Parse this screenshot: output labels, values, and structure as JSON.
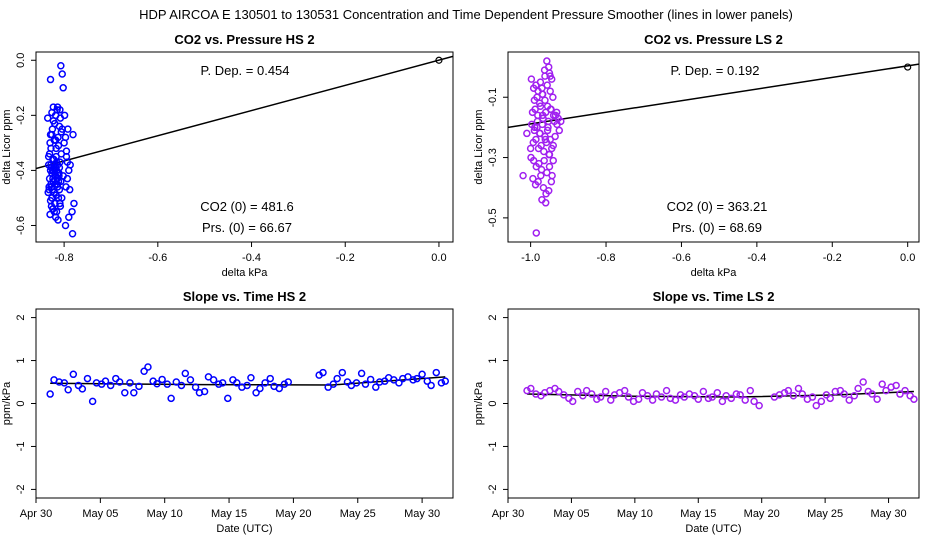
{
  "figure": {
    "title": "HDP   AIRCOA E   130501 to 130531   Concentration and Time Dependent Pressure Smoother (lines in lower panels)"
  },
  "chart_data": [
    {
      "type": "scatter",
      "panel": "hs-pressure",
      "title": "CO2 vs. Pressure HS 2",
      "xlabel": "delta kPa",
      "ylabel": "delta Licor ppm",
      "xlim": [
        -0.86,
        0.03
      ],
      "ylim": [
        -0.66,
        0.03
      ],
      "xticks": [
        -0.8,
        -0.6,
        -0.4,
        -0.2,
        0.0
      ],
      "xtick_labels": [
        "-0.8",
        "-0.6",
        "-0.4",
        "-0.2",
        "0.0"
      ],
      "yticks": [
        0.0,
        -0.2,
        -0.4,
        -0.6
      ],
      "ytick_labels": [
        "0.0",
        "-0.2",
        "-0.4",
        "-0.6"
      ],
      "color": "#0000ff",
      "fit_line": {
        "x": [
          -0.86,
          0.03
        ],
        "y": [
          -0.393,
          0.014
        ]
      },
      "reference_point": {
        "x": 0.0,
        "y": 0.0
      },
      "annotations": {
        "pdep": "P. Dep. =  0.454",
        "co2_zero": "CO2 (0) =  481.6",
        "prs_zero": "Prs. (0) =  66.67"
      },
      "x": [
        -0.829,
        -0.823,
        -0.815,
        -0.809,
        -0.835,
        -0.818,
        -0.826,
        -0.821,
        -0.806,
        -0.828,
        -0.812,
        -0.831,
        -0.817,
        -0.824,
        -0.809,
        -0.833,
        -0.814,
        -0.822,
        -0.818,
        -0.827,
        -0.81,
        -0.824,
        -0.816,
        -0.829,
        -0.82,
        -0.813,
        -0.826,
        -0.818,
        -0.811,
        -0.831,
        -0.815,
        -0.823,
        -0.807,
        -0.828,
        -0.819,
        -0.832,
        -0.814,
        -0.825,
        -0.81,
        -0.821,
        -0.834,
        -0.817,
        -0.826,
        -0.812,
        -0.829,
        -0.82,
        -0.808,
        -0.824,
        -0.816,
        -0.83,
        -0.818,
        -0.813,
        -0.827,
        -0.821,
        -0.809,
        -0.832,
        -0.815,
        -0.824,
        -0.819,
        -0.811,
        -0.828,
        -0.822,
        -0.806,
        -0.817,
        -0.83,
        -0.813,
        -0.825,
        -0.82,
        -0.808,
        -0.826,
        -0.814,
        -0.823,
        -0.81,
        -0.829,
        -0.818,
        -0.833,
        -0.816,
        -0.821,
        -0.812,
        -0.827,
        -0.807,
        -0.804,
        -0.802,
        -0.799,
        -0.804,
        -0.797,
        -0.8,
        -0.795,
        -0.793,
        -0.79,
        -0.802,
        -0.796,
        -0.805,
        -0.779,
        -0.783,
        -0.79,
        -0.797,
        -0.782,
        -0.788,
        -0.793,
        -0.787,
        -0.795,
        -0.781,
        -0.792
      ],
      "y": [
        -0.07,
        -0.17,
        -0.18,
        -0.18,
        -0.21,
        -0.2,
        -0.27,
        -0.29,
        -0.26,
        -0.32,
        -0.31,
        -0.34,
        -0.35,
        -0.36,
        -0.37,
        -0.38,
        -0.38,
        -0.38,
        -0.39,
        -0.39,
        -0.39,
        -0.4,
        -0.4,
        -0.4,
        -0.41,
        -0.41,
        -0.41,
        -0.42,
        -0.42,
        -0.43,
        -0.43,
        -0.44,
        -0.44,
        -0.45,
        -0.45,
        -0.46,
        -0.46,
        -0.47,
        -0.47,
        -0.48,
        -0.48,
        -0.49,
        -0.5,
        -0.5,
        -0.51,
        -0.52,
        -0.53,
        -0.54,
        -0.55,
        -0.56,
        -0.57,
        -0.58,
        -0.53,
        -0.55,
        -0.52,
        -0.47,
        -0.45,
        -0.43,
        -0.42,
        -0.41,
        -0.38,
        -0.36,
        -0.34,
        -0.32,
        -0.3,
        -0.28,
        -0.25,
        -0.23,
        -0.21,
        -0.19,
        -0.17,
        -0.22,
        -0.24,
        -0.27,
        -0.29,
        -0.35,
        -0.37,
        -0.39,
        -0.44,
        -0.46,
        -0.02,
        -0.05,
        -0.1,
        -0.2,
        -0.25,
        -0.28,
        -0.3,
        -0.33,
        -0.37,
        -0.4,
        -0.42,
        -0.46,
        -0.5,
        -0.52,
        -0.55,
        -0.57,
        -0.6,
        -0.63,
        -0.47,
        -0.43,
        -0.38,
        -0.35,
        -0.27,
        -0.25
      ]
    },
    {
      "type": "scatter",
      "panel": "ls-pressure",
      "title": "CO2 vs. Pressure LS 2",
      "xlabel": "delta kPa",
      "ylabel": "delta Licor ppm",
      "xlim": [
        -1.06,
        0.03
      ],
      "ylim": [
        -0.58,
        0.05
      ],
      "xticks": [
        -1.0,
        -0.8,
        -0.6,
        -0.4,
        -0.2,
        0.0
      ],
      "xtick_labels": [
        "-1.0",
        "-0.8",
        "-0.6",
        "-0.4",
        "-0.2",
        "0.0"
      ],
      "yticks": [
        -0.1,
        -0.3,
        -0.5
      ],
      "ytick_labels": [
        "-0.1",
        "-0.3",
        "-0.5"
      ],
      "color": "#a020f0",
      "fit_line": {
        "x": [
          -1.06,
          0.03
        ],
        "y": [
          -0.2,
          0.01
        ]
      },
      "reference_point": {
        "x": 0.0,
        "y": 0.0
      },
      "annotations": {
        "pdep": "P. Dep. =  0.192",
        "co2_zero": "CO2 (0) =  363.21",
        "prs_zero": "Prs. (0) =  68.69"
      },
      "x": [
        -0.998,
        -0.992,
        -0.986,
        -0.98,
        -0.974,
        -0.968,
        -0.962,
        -0.956,
        -0.95,
        -0.944,
        -0.99,
        -0.983,
        -0.976,
        -0.969,
        -0.962,
        -0.955,
        -0.948,
        -0.941,
        -0.995,
        -0.988,
        -0.981,
        -0.974,
        -0.967,
        -0.96,
        -0.953,
        -0.946,
        -0.939,
        -0.997,
        -0.99,
        -0.983,
        -0.976,
        -0.969,
        -0.962,
        -0.955,
        -0.948,
        -0.993,
        -0.986,
        -0.979,
        -0.972,
        -0.965,
        -0.958,
        -0.951,
        -0.944,
        -0.999,
        -0.992,
        -0.985,
        -0.978,
        -0.971,
        -0.964,
        -0.957,
        -0.95,
        -0.943,
        -0.994,
        -0.987,
        -0.98,
        -0.973,
        -0.966,
        -0.959,
        -0.952,
        -0.945,
        -0.989,
        -0.982,
        -0.975,
        -0.968,
        -0.961,
        -0.954,
        -0.947,
        -0.94,
        -0.937,
        -0.934,
        -0.93,
        -0.927,
        -0.924,
        -0.92,
        -0.935,
        -0.931,
        -0.952,
        -0.957,
        -0.963,
        -0.948,
        -0.97,
        -1.02,
        -1.01,
        -1.0,
        -0.97,
        -0.96,
        -0.95,
        -0.94,
        -0.985
      ],
      "y": [
        -0.04,
        -0.07,
        -0.06,
        -0.08,
        -0.05,
        -0.09,
        -0.03,
        -0.06,
        -0.02,
        -0.04,
        -0.11,
        -0.1,
        -0.12,
        -0.09,
        -0.11,
        -0.13,
        -0.08,
        -0.1,
        -0.15,
        -0.14,
        -0.16,
        -0.13,
        -0.17,
        -0.15,
        -0.18,
        -0.14,
        -0.16,
        -0.19,
        -0.21,
        -0.2,
        -0.22,
        -0.19,
        -0.23,
        -0.21,
        -0.24,
        -0.25,
        -0.24,
        -0.27,
        -0.26,
        -0.28,
        -0.25,
        -0.29,
        -0.27,
        -0.3,
        -0.31,
        -0.33,
        -0.32,
        -0.34,
        -0.31,
        -0.35,
        -0.33,
        -0.36,
        -0.37,
        -0.39,
        -0.38,
        -0.36,
        -0.4,
        -0.42,
        -0.41,
        -0.38,
        -0.2,
        -0.18,
        -0.22,
        -0.16,
        -0.24,
        -0.2,
        -0.14,
        -0.26,
        -0.18,
        -0.16,
        -0.19,
        -0.17,
        -0.21,
        -0.18,
        -0.23,
        -0.15,
        0.0,
        0.02,
        -0.01,
        -0.03,
        -0.07,
        -0.36,
        -0.22,
        -0.27,
        -0.44,
        -0.45,
        -0.29,
        -0.31,
        -0.55
      ]
    },
    {
      "type": "scatter",
      "panel": "hs-time",
      "title": "Slope vs. Time HS 2",
      "xlabel": "Date (UTC)",
      "ylabel": "ppm/kPa",
      "xlim": [
        30.0,
        62.4
      ],
      "ylim": [
        -2.2,
        2.2
      ],
      "xticks": [
        30,
        35,
        40,
        45,
        50,
        55,
        60
      ],
      "xtick_labels": [
        "Apr 30",
        "May 05",
        "May 10",
        "May 15",
        "May 20",
        "May 25",
        "May 30"
      ],
      "yticks": [
        -2,
        -1,
        0,
        1,
        2
      ],
      "ytick_labels": [
        "-2",
        "-1",
        "0",
        "1",
        "2"
      ],
      "color": "#0000ff",
      "x_units": "days from Apr 1 (Apr 30 = 30)",
      "smoother": {
        "x": [
          31.1,
          43.0,
          53.0,
          61.8
        ],
        "y": [
          0.47,
          0.44,
          0.43,
          0.62
        ]
      },
      "x": [
        31.1,
        31.4,
        31.8,
        32.2,
        32.5,
        32.9,
        33.3,
        33.6,
        34.0,
        34.4,
        34.7,
        35.1,
        35.4,
        35.8,
        36.2,
        36.5,
        36.9,
        37.3,
        37.6,
        38.0,
        38.4,
        38.7,
        39.1,
        39.4,
        39.8,
        40.2,
        40.5,
        40.9,
        41.3,
        41.6,
        42.0,
        42.4,
        42.7,
        43.1,
        43.4,
        43.8,
        44.2,
        44.5,
        44.9,
        45.3,
        45.6,
        46.0,
        46.4,
        46.7,
        47.1,
        47.4,
        47.8,
        48.2,
        48.5,
        48.9,
        49.3,
        49.6,
        52.0,
        52.3,
        52.7,
        53.1,
        53.4,
        53.8,
        54.2,
        54.5,
        54.9,
        55.3,
        55.6,
        56.0,
        56.4,
        56.7,
        57.1,
        57.4,
        57.8,
        58.2,
        58.5,
        58.9,
        59.3,
        59.6,
        60.0,
        60.4,
        60.7,
        61.1,
        61.5,
        61.8
      ],
      "y": [
        0.22,
        0.55,
        0.5,
        0.48,
        0.32,
        0.68,
        0.42,
        0.34,
        0.58,
        0.05,
        0.48,
        0.45,
        0.52,
        0.42,
        0.58,
        0.5,
        0.25,
        0.48,
        0.25,
        0.4,
        0.75,
        0.85,
        0.52,
        0.46,
        0.56,
        0.45,
        0.12,
        0.5,
        0.42,
        0.7,
        0.55,
        0.38,
        0.25,
        0.28,
        0.62,
        0.55,
        0.45,
        0.48,
        0.12,
        0.55,
        0.48,
        0.38,
        0.42,
        0.6,
        0.25,
        0.35,
        0.48,
        0.58,
        0.4,
        0.35,
        0.45,
        0.5,
        0.66,
        0.72,
        0.38,
        0.45,
        0.58,
        0.72,
        0.5,
        0.42,
        0.48,
        0.7,
        0.45,
        0.56,
        0.38,
        0.5,
        0.52,
        0.6,
        0.55,
        0.48,
        0.58,
        0.62,
        0.55,
        0.58,
        0.68,
        0.52,
        0.42,
        0.72,
        0.48,
        0.52
      ]
    },
    {
      "type": "scatter",
      "panel": "ls-time",
      "title": "Slope vs. Time LS 2",
      "xlabel": "Date (UTC)",
      "ylabel": "ppm/kPa",
      "xlim": [
        30.0,
        62.4
      ],
      "ylim": [
        -2.2,
        2.2
      ],
      "xticks": [
        30,
        35,
        40,
        45,
        50,
        55,
        60
      ],
      "xtick_labels": [
        "Apr 30",
        "May 05",
        "May 10",
        "May 15",
        "May 20",
        "May 25",
        "May 30"
      ],
      "yticks": [
        -2,
        -1,
        0,
        1,
        2
      ],
      "ytick_labels": [
        "-2",
        "-1",
        "0",
        "1",
        "2"
      ],
      "color": "#a020f0",
      "x_units": "days from Apr 1 (Apr 30 = 30)",
      "smoother": {
        "x": [
          31.5,
          40.0,
          48.0,
          56.0,
          62.0
        ],
        "y": [
          0.22,
          0.17,
          0.15,
          0.2,
          0.28
        ]
      },
      "x": [
        31.5,
        31.8,
        32.2,
        32.6,
        32.9,
        33.3,
        33.7,
        34.0,
        34.4,
        34.8,
        35.1,
        35.5,
        35.9,
        36.2,
        36.6,
        37.0,
        37.3,
        37.7,
        38.1,
        38.4,
        38.8,
        39.2,
        39.5,
        39.9,
        40.3,
        40.6,
        41.0,
        41.4,
        41.7,
        42.1,
        42.5,
        42.8,
        43.2,
        43.6,
        43.9,
        44.3,
        44.7,
        45.0,
        45.4,
        45.8,
        46.1,
        46.5,
        46.9,
        47.2,
        47.6,
        48.0,
        48.3,
        48.7,
        49.1,
        49.4,
        49.8,
        51.0,
        51.4,
        51.8,
        52.1,
        52.5,
        52.9,
        53.2,
        53.6,
        54.0,
        54.3,
        54.7,
        55.1,
        55.4,
        55.8,
        56.2,
        56.5,
        56.9,
        57.3,
        57.6,
        58.0,
        58.4,
        58.7,
        59.1,
        59.5,
        59.8,
        60.2,
        60.6,
        60.9,
        61.3,
        61.7,
        62.0
      ],
      "y": [
        0.3,
        0.35,
        0.22,
        0.18,
        0.25,
        0.3,
        0.35,
        0.28,
        0.2,
        0.12,
        0.05,
        0.28,
        0.18,
        0.3,
        0.22,
        0.1,
        0.15,
        0.28,
        0.08,
        0.2,
        0.25,
        0.3,
        0.15,
        0.05,
        0.1,
        0.25,
        0.18,
        0.08,
        0.22,
        0.15,
        0.3,
        0.12,
        0.08,
        0.2,
        0.15,
        0.22,
        0.18,
        0.1,
        0.28,
        0.12,
        0.15,
        0.25,
        0.05,
        0.18,
        0.12,
        0.22,
        0.2,
        0.08,
        0.3,
        0.05,
        -0.05,
        0.15,
        0.2,
        0.25,
        0.3,
        0.18,
        0.35,
        0.22,
        0.1,
        0.15,
        -0.05,
        0.05,
        0.2,
        0.12,
        0.28,
        0.3,
        0.22,
        0.08,
        0.18,
        0.35,
        0.5,
        0.28,
        0.22,
        0.1,
        0.45,
        0.3,
        0.38,
        0.42,
        0.22,
        0.3,
        0.18,
        0.1
      ]
    }
  ]
}
